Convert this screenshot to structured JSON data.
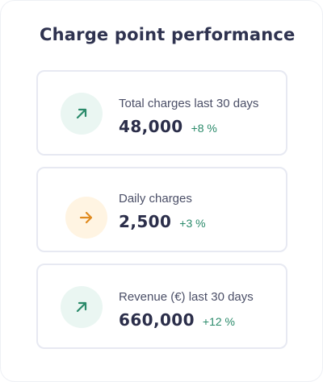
{
  "title": "Charge point performance",
  "colors": {
    "positive": "#2a8a6a",
    "orange_accent": "#e08a1e",
    "green_icon_bg": "#eaf6f2",
    "orange_icon_bg": "#fff4e2",
    "card_border": "#e7e9f2"
  },
  "cards": [
    {
      "icon": "arrow-up-right-icon",
      "label": "Total charges last 30 days",
      "value": "48,000",
      "change": "+8 %"
    },
    {
      "icon": "arrow-right-icon",
      "label": "Daily charges",
      "value": "2,500",
      "change": "+3 %"
    },
    {
      "icon": "arrow-up-right-icon",
      "label": "Revenue (€) last 30 days",
      "value": "660,000",
      "change": "+12 %"
    }
  ]
}
